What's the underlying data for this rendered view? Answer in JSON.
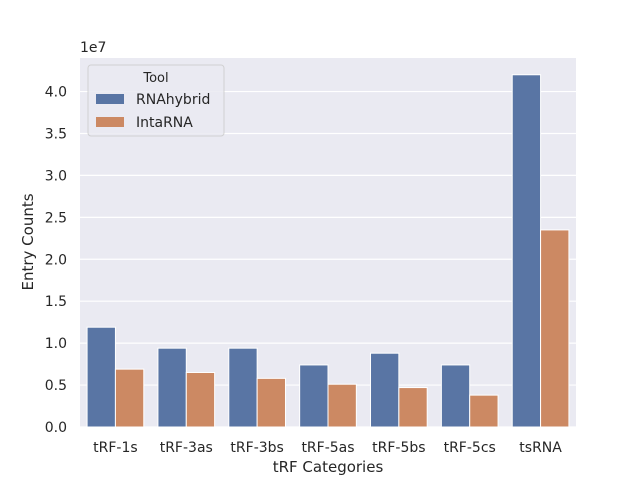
{
  "chart_data": {
    "type": "bar",
    "title": "",
    "xlabel": "tRF Categories",
    "ylabel": "Entry Counts",
    "y_scale_label": "1e7",
    "categories": [
      "tRF-1s",
      "tRF-3as",
      "tRF-3bs",
      "tRF-5as",
      "tRF-5bs",
      "tRF-5cs",
      "tsRNA"
    ],
    "series": [
      {
        "name": "RNAhybrid",
        "color": "#5975a4",
        "values": [
          11900000,
          9400000,
          9400000,
          7400000,
          8800000,
          7400000,
          42000000
        ]
      },
      {
        "name": "IntaRNA",
        "color": "#cc8963",
        "values": [
          6900000,
          6500000,
          5800000,
          5100000,
          4700000,
          3800000,
          23500000
        ]
      }
    ],
    "ylim": [
      0,
      44000000
    ],
    "yticks": [
      0,
      5000000,
      10000000,
      15000000,
      20000000,
      25000000,
      30000000,
      35000000,
      40000000
    ],
    "ytick_labels": [
      "0.0",
      "0.5",
      "1.0",
      "1.5",
      "2.0",
      "2.5",
      "3.0",
      "3.5",
      "4.0"
    ],
    "legend": {
      "title": "Tool",
      "position": "top-left"
    },
    "grid": true,
    "background": "#eaeaf2"
  }
}
